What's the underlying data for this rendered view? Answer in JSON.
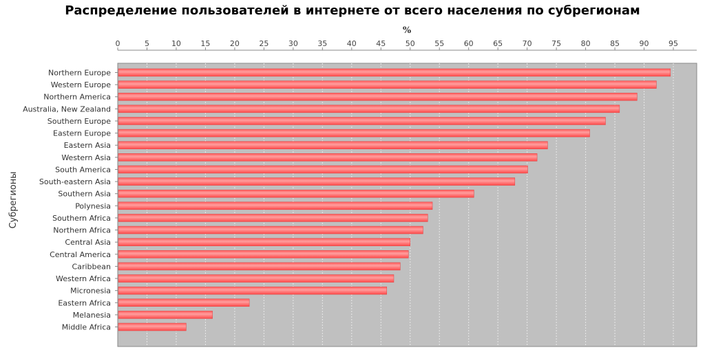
{
  "chart_data": {
    "type": "bar",
    "orientation": "horizontal",
    "title": "Распределение пользователей в интернете от всего населения по субрегионам",
    "xlabel": "%",
    "ylabel": "Субрегионы",
    "xlim": [
      0,
      99
    ],
    "x_ticks": [
      0,
      5,
      10,
      15,
      20,
      25,
      30,
      35,
      40,
      45,
      50,
      55,
      60,
      65,
      70,
      75,
      80,
      85,
      90,
      95
    ],
    "x_axis_position": "top",
    "grid": true,
    "categories": [
      "Northern Europe",
      "Western Europe",
      "Northern America",
      "Australia, New Zealand",
      "Southern Europe",
      "Eastern Europe",
      "Eastern Asia",
      "Western Asia",
      "South America",
      "South-eastern Asia",
      "Southern Asia",
      "Polynesia",
      "Southern Africa",
      "Northern Africa",
      "Central Asia",
      "Central America",
      "Caribbean",
      "Western Africa",
      "Micronesia",
      "Eastern Africa",
      "Melanesia",
      "Middle Africa"
    ],
    "values": [
      94.5,
      92.1,
      88.8,
      85.8,
      83.4,
      80.7,
      73.5,
      71.7,
      70.1,
      67.9,
      60.9,
      53.8,
      53.0,
      52.2,
      50.0,
      49.7,
      48.3,
      47.2,
      46.0,
      22.5,
      16.2,
      11.7
    ],
    "colors": {
      "bar": "#ff5555",
      "bar_highlight": "#ffa0a0",
      "plot_background": "#c0c0c0",
      "grid": "#e8e8e8",
      "axis": "#888888"
    }
  }
}
